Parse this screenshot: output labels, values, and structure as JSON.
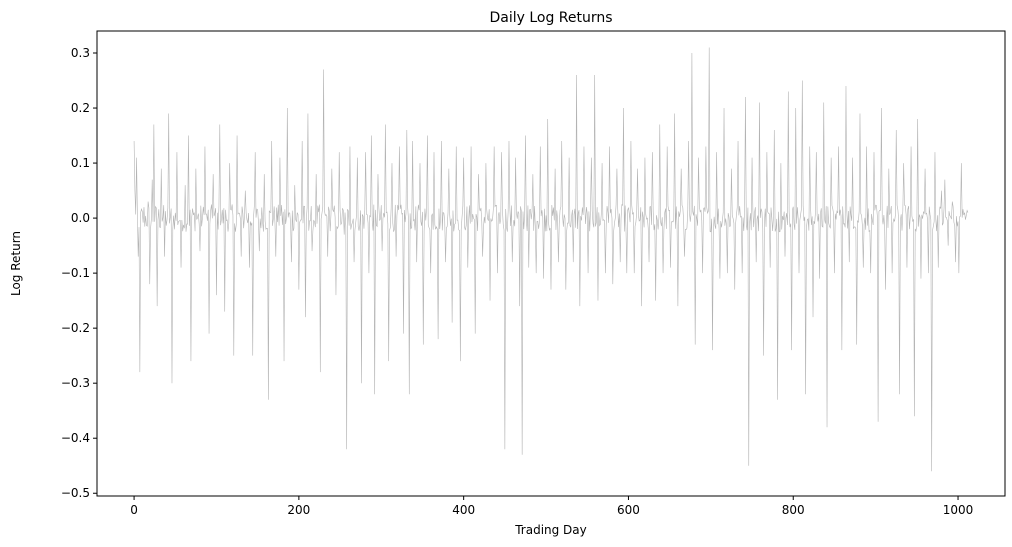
{
  "chart_data": {
    "type": "line",
    "title": "Daily Log Returns",
    "xlabel": "Trading Day",
    "ylabel": "Log Return",
    "xlim": [
      -45,
      1057
    ],
    "ylim": [
      -0.505,
      0.34
    ],
    "x_ticks": [
      0,
      200,
      400,
      600,
      800,
      1000
    ],
    "x_tick_labels": [
      "0",
      "200",
      "400",
      "600",
      "800",
      "1000"
    ],
    "y_ticks": [
      -0.5,
      -0.4,
      -0.3,
      -0.2,
      -0.1,
      0.0,
      0.1,
      0.2,
      0.3
    ],
    "y_tick_labels": [
      "−0.5",
      "−0.4",
      "−0.3",
      "−0.2",
      "−0.1",
      "0.0",
      "0.1",
      "0.2",
      "0.3"
    ],
    "grid": false,
    "line_color": "#b3b3b3",
    "series": [
      {
        "x_start": 0,
        "x_step": 1,
        "count": 1013,
        "spikes": [
          [
            0,
            0.14
          ],
          [
            1,
            0.05
          ],
          [
            3,
            0.11
          ],
          [
            5,
            -0.07
          ],
          [
            7,
            -0.28
          ],
          [
            12,
            0.02
          ],
          [
            17,
            0.03
          ],
          [
            19,
            -0.12
          ],
          [
            22,
            0.07
          ],
          [
            24,
            0.17
          ],
          [
            28,
            -0.16
          ],
          [
            33,
            0.09
          ],
          [
            37,
            -0.07
          ],
          [
            42,
            0.19
          ],
          [
            46,
            -0.3
          ],
          [
            52,
            0.12
          ],
          [
            57,
            -0.09
          ],
          [
            62,
            0.06
          ],
          [
            66,
            0.15
          ],
          [
            69,
            -0.26
          ],
          [
            75,
            0.09
          ],
          [
            80,
            -0.06
          ],
          [
            86,
            0.13
          ],
          [
            91,
            -0.21
          ],
          [
            96,
            0.08
          ],
          [
            100,
            -0.14
          ],
          [
            104,
            0.17
          ],
          [
            110,
            -0.17
          ],
          [
            116,
            0.1
          ],
          [
            121,
            -0.25
          ],
          [
            125,
            0.15
          ],
          [
            130,
            -0.07
          ],
          [
            135,
            0.05
          ],
          [
            140,
            -0.09
          ],
          [
            144,
            -0.25
          ],
          [
            147,
            0.12
          ],
          [
            152,
            -0.06
          ],
          [
            158,
            0.08
          ],
          [
            163,
            -0.33
          ],
          [
            167,
            0.14
          ],
          [
            172,
            -0.07
          ],
          [
            177,
            0.11
          ],
          [
            182,
            -0.26
          ],
          [
            186,
            0.2
          ],
          [
            191,
            -0.08
          ],
          [
            195,
            0.06
          ],
          [
            200,
            -0.13
          ],
          [
            204,
            0.14
          ],
          [
            208,
            -0.18
          ],
          [
            211,
            0.19
          ],
          [
            216,
            -0.06
          ],
          [
            221,
            0.08
          ],
          [
            226,
            -0.28
          ],
          [
            230,
            0.27
          ],
          [
            235,
            -0.07
          ],
          [
            240,
            0.09
          ],
          [
            245,
            -0.14
          ],
          [
            249,
            0.12
          ],
          [
            255,
            -0.03
          ],
          [
            258,
            -0.42
          ],
          [
            262,
            0.13
          ],
          [
            267,
            -0.08
          ],
          [
            271,
            0.11
          ],
          [
            276,
            -0.3
          ],
          [
            281,
            0.12
          ],
          [
            285,
            -0.1
          ],
          [
            288,
            0.15
          ],
          [
            292,
            -0.32
          ],
          [
            296,
            0.08
          ],
          [
            301,
            -0.06
          ],
          [
            305,
            0.17
          ],
          [
            309,
            -0.26
          ],
          [
            313,
            0.1
          ],
          [
            318,
            -0.07
          ],
          [
            322,
            0.13
          ],
          [
            327,
            -0.21
          ],
          [
            331,
            0.16
          ],
          [
            334,
            -0.32
          ],
          [
            338,
            0.14
          ],
          [
            343,
            -0.08
          ],
          [
            347,
            0.1
          ],
          [
            351,
            -0.23
          ],
          [
            356,
            0.15
          ],
          [
            360,
            -0.1
          ],
          [
            364,
            0.12
          ],
          [
            369,
            -0.22
          ],
          [
            373,
            0.14
          ],
          [
            378,
            -0.08
          ],
          [
            382,
            0.09
          ],
          [
            386,
            -0.19
          ],
          [
            391,
            0.13
          ],
          [
            396,
            -0.26
          ],
          [
            400,
            0.11
          ],
          [
            405,
            -0.09
          ],
          [
            409,
            0.13
          ],
          [
            414,
            -0.21
          ],
          [
            418,
            0.08
          ],
          [
            423,
            -0.07
          ],
          [
            427,
            0.1
          ],
          [
            432,
            -0.15
          ],
          [
            437,
            0.13
          ],
          [
            441,
            -0.1
          ],
          [
            446,
            0.12
          ],
          [
            450,
            -0.42
          ],
          [
            455,
            0.14
          ],
          [
            459,
            -0.08
          ],
          [
            463,
            0.11
          ],
          [
            468,
            -0.16
          ],
          [
            471,
            -0.43
          ],
          [
            475,
            0.15
          ],
          [
            479,
            -0.09
          ],
          [
            484,
            0.08
          ],
          [
            488,
            -0.1
          ],
          [
            493,
            0.13
          ],
          [
            497,
            -0.11
          ],
          [
            502,
            0.18
          ],
          [
            506,
            -0.13
          ],
          [
            511,
            0.09
          ],
          [
            515,
            -0.08
          ],
          [
            519,
            0.14
          ],
          [
            524,
            -0.13
          ],
          [
            528,
            0.11
          ],
          [
            533,
            -0.08
          ],
          [
            537,
            0.26
          ],
          [
            541,
            -0.16
          ],
          [
            546,
            0.13
          ],
          [
            551,
            -0.1
          ],
          [
            555,
            0.11
          ],
          [
            559,
            0.26
          ],
          [
            563,
            -0.15
          ],
          [
            568,
            0.1
          ],
          [
            572,
            -0.1
          ],
          [
            577,
            0.13
          ],
          [
            581,
            -0.12
          ],
          [
            586,
            0.09
          ],
          [
            590,
            -0.08
          ],
          [
            594,
            0.2
          ],
          [
            598,
            -0.1
          ],
          [
            603,
            0.14
          ],
          [
            607,
            -0.1
          ],
          [
            611,
            0.09
          ],
          [
            616,
            -0.16
          ],
          [
            620,
            0.11
          ],
          [
            625,
            -0.08
          ],
          [
            629,
            0.12
          ],
          [
            633,
            -0.15
          ],
          [
            638,
            0.17
          ],
          [
            642,
            -0.1
          ],
          [
            647,
            0.13
          ],
          [
            651,
            -0.09
          ],
          [
            656,
            0.19
          ],
          [
            660,
            -0.16
          ],
          [
            664,
            0.09
          ],
          [
            668,
            -0.07
          ],
          [
            673,
            0.14
          ],
          [
            677,
            0.3
          ],
          [
            681,
            -0.23
          ],
          [
            685,
            0.11
          ],
          [
            690,
            -0.1
          ],
          [
            694,
            0.13
          ],
          [
            698,
            0.31
          ],
          [
            702,
            -0.24
          ],
          [
            707,
            0.12
          ],
          [
            711,
            -0.11
          ],
          [
            716,
            0.2
          ],
          [
            720,
            -0.1
          ],
          [
            725,
            0.09
          ],
          [
            729,
            -0.13
          ],
          [
            733,
            0.14
          ],
          [
            738,
            -0.1
          ],
          [
            742,
            0.22
          ],
          [
            746,
            -0.45
          ],
          [
            750,
            0.11
          ],
          [
            755,
            -0.08
          ],
          [
            759,
            0.21
          ],
          [
            764,
            -0.25
          ],
          [
            768,
            0.12
          ],
          [
            772,
            -0.09
          ],
          [
            777,
            0.16
          ],
          [
            781,
            -0.33
          ],
          [
            785,
            0.1
          ],
          [
            790,
            -0.07
          ],
          [
            794,
            0.23
          ],
          [
            798,
            -0.24
          ],
          [
            803,
            0.2
          ],
          [
            807,
            -0.1
          ],
          [
            811,
            0.25
          ],
          [
            815,
            -0.32
          ],
          [
            820,
            0.13
          ],
          [
            824,
            -0.18
          ],
          [
            828,
            0.12
          ],
          [
            832,
            -0.11
          ],
          [
            837,
            0.21
          ],
          [
            841,
            -0.38
          ],
          [
            846,
            0.11
          ],
          [
            850,
            -0.1
          ],
          [
            855,
            0.13
          ],
          [
            859,
            -0.24
          ],
          [
            864,
            0.24
          ],
          [
            868,
            -0.08
          ],
          [
            872,
            0.11
          ],
          [
            877,
            -0.23
          ],
          [
            881,
            0.19
          ],
          [
            885,
            -0.09
          ],
          [
            889,
            0.13
          ],
          [
            894,
            -0.1
          ],
          [
            898,
            0.12
          ],
          [
            903,
            -0.37
          ],
          [
            907,
            0.2
          ],
          [
            912,
            -0.13
          ],
          [
            916,
            0.09
          ],
          [
            920,
            -0.1
          ],
          [
            925,
            0.16
          ],
          [
            929,
            -0.32
          ],
          [
            934,
            0.1
          ],
          [
            938,
            -0.09
          ],
          [
            943,
            0.13
          ],
          [
            947,
            -0.36
          ],
          [
            951,
            0.18
          ],
          [
            955,
            -0.11
          ],
          [
            960,
            0.09
          ],
          [
            964,
            -0.1
          ],
          [
            968,
            -0.46
          ],
          [
            972,
            0.12
          ],
          [
            976,
            -0.09
          ],
          [
            980,
            0.05
          ],
          [
            984,
            0.07
          ],
          [
            988,
            -0.05
          ],
          [
            993,
            0.03
          ],
          [
            997,
            -0.08
          ],
          [
            1001,
            -0.1
          ],
          [
            1004,
            0.1
          ],
          [
            1008,
            0.01
          ],
          [
            1012,
            0.01
          ]
        ]
      }
    ]
  }
}
